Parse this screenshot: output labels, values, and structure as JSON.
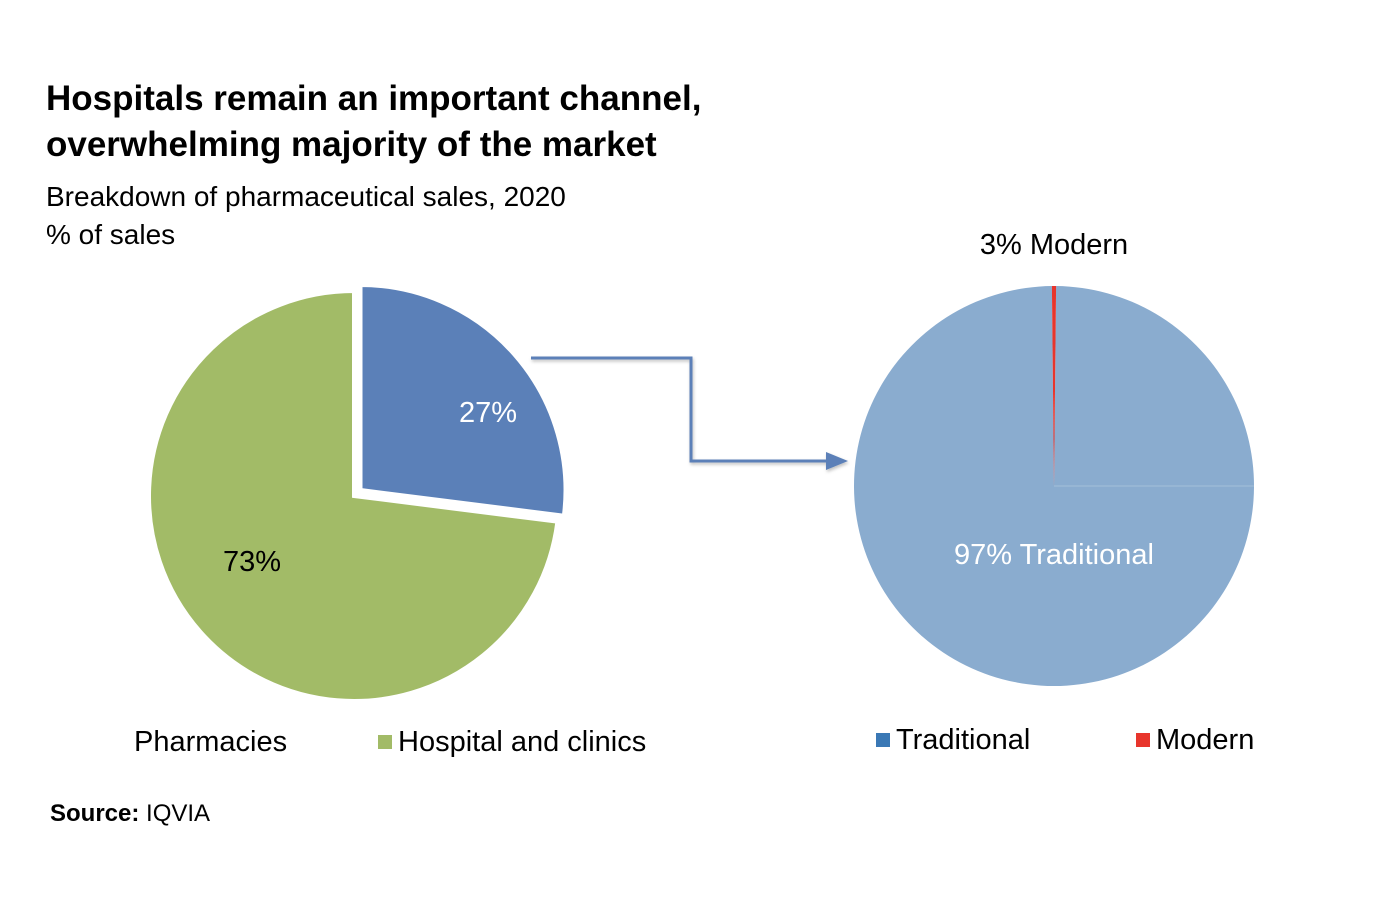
{
  "title_line1": "Hospitals remain an important channel,",
  "title_line2": "overwhelming majority of the market",
  "subtitle": "Breakdown of pharmaceutical sales,  2020",
  "unit_label": "% of sales",
  "source": {
    "label": "Source:",
    "value": "IQVIA"
  },
  "chart_data": [
    {
      "type": "pie",
      "slices": [
        {
          "name": "Hospital and clinics",
          "value": 73,
          "label": "73%",
          "color": "#A2BB67"
        },
        {
          "name": "Pharmacies",
          "value": 27,
          "label": "27%",
          "color": "#5B80B8"
        }
      ],
      "legend": [
        {
          "label": "Pharmacies",
          "color": ""
        },
        {
          "label": "Hospital and clinics",
          "color": "#A2BB67"
        }
      ],
      "legend_position": "bottom"
    },
    {
      "type": "pie",
      "slices": [
        {
          "name": "Traditional",
          "value": 97,
          "label": "97% Traditional",
          "color": "#8AACCF"
        },
        {
          "name": "Modern",
          "value": 3,
          "label": "3% Modern",
          "color": "#E8352C"
        }
      ],
      "legend": [
        {
          "label": "Traditional",
          "color": "#3A78B5"
        },
        {
          "label": "Modern",
          "color": "#E8352C"
        }
      ],
      "legend_position": "bottom"
    }
  ],
  "colors": {
    "connector": "#5B80B8"
  }
}
